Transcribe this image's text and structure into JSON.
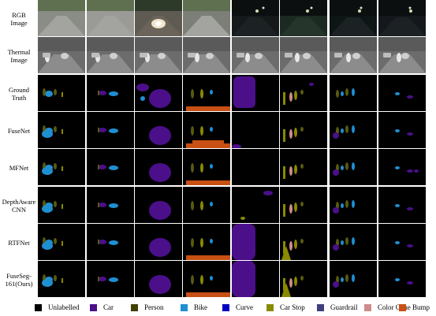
{
  "row_labels": [
    [
      "RGB",
      "Image"
    ],
    [
      "Thermal",
      "Image"
    ],
    [
      "Ground",
      "Truth"
    ],
    [
      "FuseNet"
    ],
    [
      "MFNet"
    ],
    [
      "DepthAware",
      "CNN"
    ],
    [
      "RTFNet"
    ],
    [
      "FuseSeg-",
      "161(Ours)"
    ]
  ],
  "legend": [
    {
      "label": "Unlabelled",
      "color": "#000000"
    },
    {
      "label": "Car",
      "color": "#4b0f8a"
    },
    {
      "label": "Person",
      "color": "#404000"
    },
    {
      "label": "Bike",
      "color": "#1f8fd0"
    },
    {
      "label": "Curve",
      "color": "#0000c0"
    },
    {
      "label": "Car Stop",
      "color": "#8a8a00"
    },
    {
      "label": "Guardrail",
      "color": "#3f3f7f"
    },
    {
      "label": "Color Cone",
      "color": "#d08c8c"
    },
    {
      "label": "Bump",
      "color": "#c85014"
    }
  ]
}
